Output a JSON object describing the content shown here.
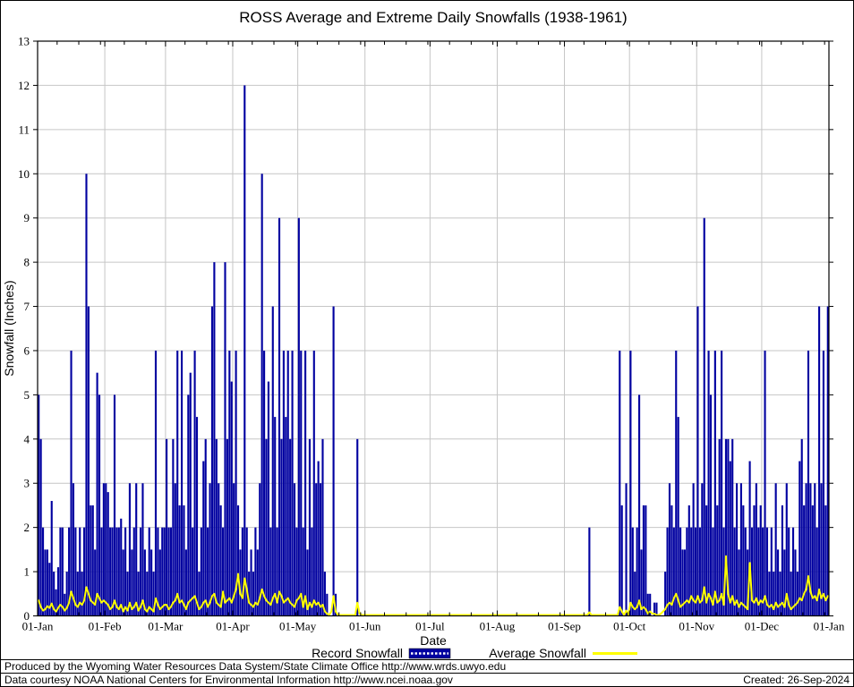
{
  "title": "ROSS Average and Extreme Daily Snowfalls (1938-1961)",
  "y_axis": {
    "label": "Snowfall (Inches)",
    "ticks": [
      0,
      1,
      2,
      3,
      4,
      5,
      6,
      7,
      8,
      9,
      10,
      11,
      12,
      13
    ]
  },
  "x_axis": {
    "label": "Date",
    "ticks": [
      "01-Jan",
      "01-Feb",
      "01-Mar",
      "01-Apr",
      "01-May",
      "01-Jun",
      "01-Jul",
      "01-Aug",
      "01-Sep",
      "01-Oct",
      "01-Nov",
      "01-Dec",
      "01-Jan"
    ]
  },
  "legend": {
    "record_label": "Record Snowfall",
    "average_label": "Average Snowfall"
  },
  "footer": {
    "line1": "Produced by the Wyoming Water Resources Data System/State Climate Office http://www.wrds.uwyo.edu",
    "line2": "Data courtesy NOAA National Centers for Environmental Information http://www.ncei.noaa.gov",
    "created": "Created: 26-Sep-2024"
  },
  "colors": {
    "record_bar": "#0000a0",
    "average_line": "#ffff00",
    "grid": "#c6c6c6",
    "axis": "#000000",
    "background": "#ffffff"
  },
  "chart_data": {
    "type": "bar",
    "title": "ROSS Average and Extreme Daily Snowfalls (1938-1961)",
    "xlabel": "Date",
    "ylabel": "Snowfall (Inches)",
    "ylim": [
      0,
      13
    ],
    "x_unit": "day-of-year, 01-Jan through 31-Dec",
    "month_day_counts": [
      31,
      28,
      31,
      30,
      31,
      30,
      31,
      31,
      30,
      31,
      30,
      31
    ],
    "month_boundaries_day_index": [
      0,
      31,
      59,
      90,
      120,
      151,
      181,
      212,
      243,
      273,
      304,
      334,
      365
    ],
    "grid": "on",
    "legend_position": "below",
    "series": [
      {
        "name": "Record Snowfall",
        "type": "bar",
        "values": [
          5,
          4,
          2,
          1.5,
          1.5,
          1.2,
          2.6,
          1,
          0.6,
          1.1,
          2,
          2,
          0.5,
          1,
          2,
          6,
          3,
          2,
          1,
          2,
          1,
          2,
          10,
          7,
          2.5,
          2.5,
          1.5,
          5.5,
          5,
          2,
          3,
          3,
          2.8,
          2,
          2,
          5,
          2,
          2,
          2.2,
          1.5,
          2,
          1,
          3,
          1.5,
          2,
          3,
          1,
          2,
          3,
          1.5,
          1,
          2,
          1.5,
          1,
          6,
          2,
          1.5,
          2,
          2,
          4,
          2,
          2,
          4,
          3,
          6,
          2.5,
          6,
          2.5,
          1.5,
          5,
          5.5,
          2,
          6,
          4.5,
          1,
          2,
          3.5,
          4,
          2,
          3,
          7,
          8,
          4,
          3,
          2.5,
          2,
          8,
          4,
          6,
          5.3,
          3,
          6,
          2.5,
          1.5,
          2,
          12,
          2,
          1,
          1.5,
          1,
          2,
          1.5,
          3,
          10,
          6,
          4,
          5.3,
          2,
          7,
          4.5,
          2,
          9,
          4,
          6,
          4.5,
          6,
          4,
          6,
          3,
          2,
          9,
          6,
          2,
          6,
          1.5,
          4,
          2,
          6,
          3,
          3.5,
          3,
          4,
          1,
          0.5,
          0,
          0,
          7,
          0.5,
          0,
          0,
          0,
          0,
          0,
          0,
          0,
          0,
          0,
          4,
          0,
          0,
          0,
          0,
          0,
          0,
          0,
          0,
          0,
          0,
          0,
          0,
          0,
          0,
          0,
          0,
          0,
          0,
          0,
          0,
          0,
          0,
          0,
          0,
          0,
          0,
          0,
          0,
          0,
          0,
          0,
          0,
          0,
          0,
          0,
          0,
          0,
          0,
          0,
          0,
          0,
          0,
          0,
          0,
          0,
          0,
          0,
          0,
          0,
          0,
          0,
          0,
          0,
          0,
          0,
          0,
          0,
          0,
          0,
          0,
          0,
          0,
          0,
          0,
          0,
          0,
          0,
          0,
          0,
          0,
          0,
          0,
          0,
          0,
          0,
          0,
          0,
          0,
          0,
          0,
          0,
          0,
          0,
          0,
          0,
          0,
          0,
          0,
          0,
          0,
          0,
          0,
          0,
          0,
          0,
          0,
          0,
          0,
          0,
          0,
          0,
          0,
          0,
          0,
          0,
          0,
          2,
          0,
          0,
          0,
          0,
          0,
          0,
          0,
          0,
          0,
          0,
          0,
          0,
          0,
          6,
          2.5,
          0,
          3,
          0,
          6,
          2,
          1,
          2,
          5,
          1.5,
          2.5,
          2.5,
          0.5,
          0.5,
          0,
          0.3,
          0.3,
          0,
          0,
          0,
          1,
          2,
          3,
          2.5,
          2,
          6,
          4.5,
          2,
          1.5,
          1.5,
          2,
          2.5,
          2,
          3,
          2,
          7,
          2,
          3,
          9,
          2.5,
          6,
          5,
          2,
          6,
          2.5,
          4,
          6,
          2,
          4,
          4,
          3.5,
          4,
          2,
          3,
          1.5,
          3,
          2.5,
          2,
          1.5,
          3.5,
          2,
          2.5,
          3,
          2,
          2.5,
          2,
          6,
          2,
          1,
          2,
          1,
          3,
          1.5,
          1,
          2.5,
          1.5,
          3,
          2,
          1,
          2,
          1.5,
          1,
          3.5,
          4,
          2.5,
          3,
          6,
          3,
          2.5,
          3,
          2,
          7,
          3,
          6,
          2.5,
          7
        ]
      },
      {
        "name": "Average Snowfall",
        "type": "line",
        "values": [
          0.35,
          0.2,
          0.12,
          0.15,
          0.22,
          0.18,
          0.28,
          0.15,
          0.1,
          0.18,
          0.25,
          0.2,
          0.12,
          0.18,
          0.3,
          0.55,
          0.4,
          0.25,
          0.2,
          0.3,
          0.25,
          0.35,
          0.65,
          0.5,
          0.35,
          0.3,
          0.25,
          0.5,
          0.4,
          0.3,
          0.35,
          0.3,
          0.25,
          0.15,
          0.2,
          0.35,
          0.2,
          0.15,
          0.25,
          0.1,
          0.2,
          0.12,
          0.3,
          0.15,
          0.2,
          0.3,
          0.12,
          0.2,
          0.35,
          0.15,
          0.1,
          0.2,
          0.15,
          0.1,
          0.4,
          0.25,
          0.15,
          0.2,
          0.25,
          0.25,
          0.15,
          0.2,
          0.3,
          0.35,
          0.5,
          0.3,
          0.35,
          0.25,
          0.15,
          0.3,
          0.35,
          0.4,
          0.45,
          0.3,
          0.15,
          0.2,
          0.3,
          0.35,
          0.2,
          0.3,
          0.45,
          0.5,
          0.3,
          0.25,
          0.2,
          0.55,
          0.3,
          0.35,
          0.4,
          0.3,
          0.45,
          0.6,
          0.95,
          0.5,
          0.4,
          0.85,
          0.6,
          0.3,
          0.25,
          0.2,
          0.3,
          0.25,
          0.4,
          0.6,
          0.45,
          0.35,
          0.3,
          0.25,
          0.4,
          0.5,
          0.3,
          0.55,
          0.45,
          0.3,
          0.35,
          0.4,
          0.3,
          0.25,
          0.2,
          0.35,
          0.4,
          0.5,
          0.2,
          0.45,
          0.15,
          0.3,
          0.2,
          0.35,
          0.25,
          0.3,
          0.2,
          0.25,
          0.1,
          0.05,
          0.02,
          0.1,
          0.45,
          0.1,
          0,
          0,
          0,
          0,
          0,
          0,
          0,
          0,
          0.02,
          0.3,
          0.05,
          0,
          0,
          0,
          0,
          0,
          0,
          0,
          0,
          0,
          0,
          0,
          0,
          0,
          0,
          0,
          0,
          0,
          0,
          0,
          0,
          0,
          0,
          0,
          0,
          0,
          0,
          0,
          0,
          0,
          0,
          0,
          0,
          0,
          0,
          0,
          0,
          0,
          0,
          0,
          0,
          0,
          0,
          0,
          0,
          0,
          0,
          0,
          0,
          0,
          0,
          0,
          0,
          0,
          0,
          0,
          0,
          0,
          0,
          0,
          0,
          0,
          0,
          0,
          0,
          0,
          0,
          0,
          0,
          0,
          0,
          0,
          0,
          0,
          0,
          0,
          0,
          0,
          0,
          0,
          0,
          0,
          0,
          0,
          0,
          0,
          0,
          0,
          0,
          0,
          0,
          0,
          0,
          0,
          0,
          0,
          0,
          0,
          0,
          0,
          0,
          0,
          0,
          0,
          0,
          0,
          0.08,
          0,
          0,
          0,
          0,
          0,
          0,
          0,
          0,
          0,
          0,
          0,
          0,
          0,
          0.2,
          0.1,
          0,
          0.12,
          0,
          0.3,
          0.2,
          0.15,
          0.2,
          0.35,
          0.15,
          0.2,
          0.15,
          0.05,
          0.1,
          0.05,
          0.05,
          0.02,
          0.02,
          0.05,
          0.1,
          0.15,
          0.25,
          0.3,
          0.25,
          0.4,
          0.5,
          0.35,
          0.2,
          0.25,
          0.3,
          0.35,
          0.3,
          0.45,
          0.35,
          0.3,
          0.45,
          0.3,
          0.35,
          0.65,
          0.3,
          0.5,
          0.4,
          0.25,
          0.55,
          0.3,
          0.35,
          0.5,
          0.25,
          1.35,
          0.5,
          0.3,
          0.45,
          0.25,
          0.35,
          0.2,
          0.3,
          0.25,
          0.2,
          0.15,
          1.2,
          0.35,
          0.3,
          0.4,
          0.25,
          0.35,
          0.3,
          0.45,
          0.25,
          0.2,
          0.25,
          0.15,
          0.3,
          0.2,
          0.25,
          0.3,
          0.2,
          0.5,
          0.25,
          0.15,
          0.2,
          0.25,
          0.3,
          0.4,
          0.35,
          0.5,
          0.6,
          0.9,
          0.55,
          0.4,
          0.45,
          0.35,
          0.6,
          0.4,
          0.5,
          0.35,
          0.45
        ]
      }
    ]
  }
}
